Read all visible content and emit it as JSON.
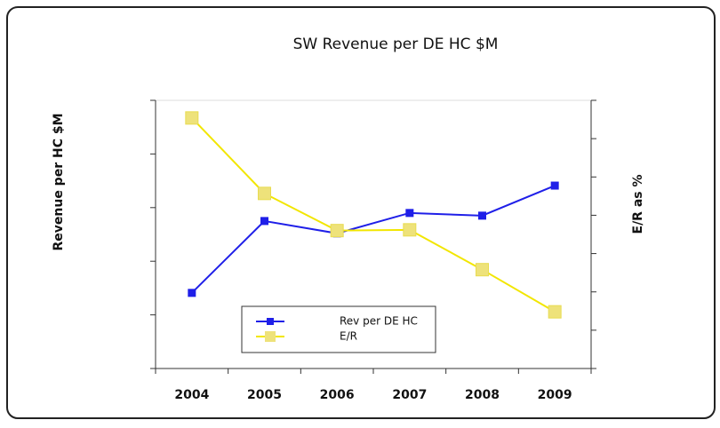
{
  "chart_data": {
    "type": "line",
    "title": "SW Revenue per DE HC $M",
    "ylabel": "Revenue per HC $M",
    "y2label": "E/R as %",
    "categories": [
      "2004",
      "2005",
      "2006",
      "2007",
      "2008",
      "2009"
    ],
    "series": [
      {
        "name": "Rev per DE HC",
        "color": "#1f1fe8",
        "values": [
          1.41,
          2.75,
          2.52,
          2.9,
          2.85,
          3.41
        ]
      },
      {
        "name": "E/R",
        "color": "#f2e600",
        "axis": "y2",
        "values": [
          6.54,
          4.57,
          3.6,
          3.62,
          2.58,
          1.48
        ]
      }
    ],
    "ylim": [
      0,
      5
    ],
    "yticks": [
      0,
      1,
      2,
      3,
      4,
      5
    ],
    "y2lim": [
      0,
      7
    ],
    "y2ticks": [
      0,
      1,
      2,
      3,
      4,
      5,
      6,
      7
    ],
    "legend": "lower center"
  }
}
